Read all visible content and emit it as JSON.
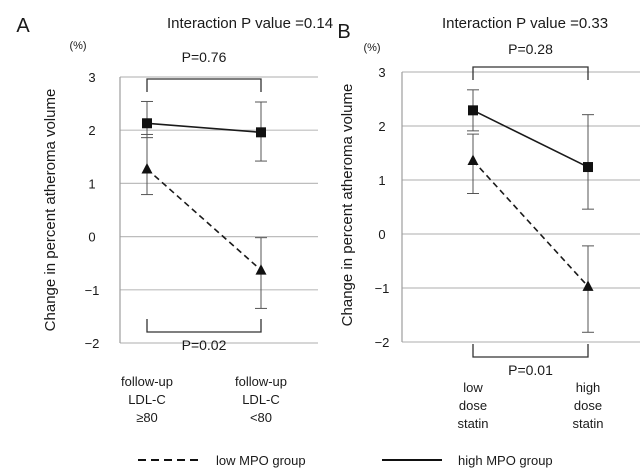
{
  "chart_data": [
    {
      "type": "line",
      "panel_label": "A",
      "title": "Interaction P value =0.14",
      "ylabel": "Change in percent atheroma volume",
      "y_unit": "(%)",
      "ylim": [
        -2,
        3
      ],
      "yticks": [
        "3",
        "2",
        "1",
        "0",
        "−1",
        "−2"
      ],
      "categories": [
        [
          "follow-up",
          "LDL-C",
          "≥80"
        ],
        [
          "follow-up",
          "LDL-C",
          "<80"
        ]
      ],
      "series": [
        {
          "name": "high MPO group",
          "marker": "square",
          "dash": false,
          "values": [
            2.13,
            1.96
          ],
          "err_low": [
            1.86,
            1.42
          ],
          "err_high": [
            2.54,
            2.53
          ]
        },
        {
          "name": "low MPO group",
          "marker": "triangle",
          "dash": true,
          "values": [
            1.27,
            -0.63
          ],
          "err_low": [
            0.79,
            -1.35
          ],
          "err_high": [
            1.92,
            -0.02
          ]
        }
      ],
      "bracket_top": "P=0.76",
      "bracket_bottom": "P=0.02",
      "grid": true
    },
    {
      "type": "line",
      "panel_label": "B",
      "title": "Interaction P value =0.33",
      "ylabel": "Change in percent atheroma volume",
      "y_unit": "(%)",
      "ylim": [
        -2,
        3
      ],
      "yticks": [
        "3",
        "2",
        "1",
        "0",
        "−1",
        "−2"
      ],
      "categories": [
        [
          "low",
          "dose",
          "statin"
        ],
        [
          "high",
          "dose",
          "statin"
        ]
      ],
      "series": [
        {
          "name": "high MPO group",
          "marker": "square",
          "dash": false,
          "values": [
            2.29,
            1.24
          ],
          "err_low": [
            1.91,
            0.46
          ],
          "err_high": [
            2.67,
            2.21
          ]
        },
        {
          "name": "low MPO group",
          "marker": "triangle",
          "dash": true,
          "values": [
            1.36,
            -0.97
          ],
          "err_low": [
            0.75,
            -1.82
          ],
          "err_high": [
            1.85,
            -0.22
          ]
        }
      ],
      "bracket_top": "P=0.28",
      "bracket_bottom": "P=0.01",
      "grid": true
    }
  ],
  "legend": {
    "items": [
      {
        "label": "low MPO group",
        "dash": true
      },
      {
        "label": "high MPO group",
        "dash": false
      }
    ],
    "placement": "bottom"
  }
}
